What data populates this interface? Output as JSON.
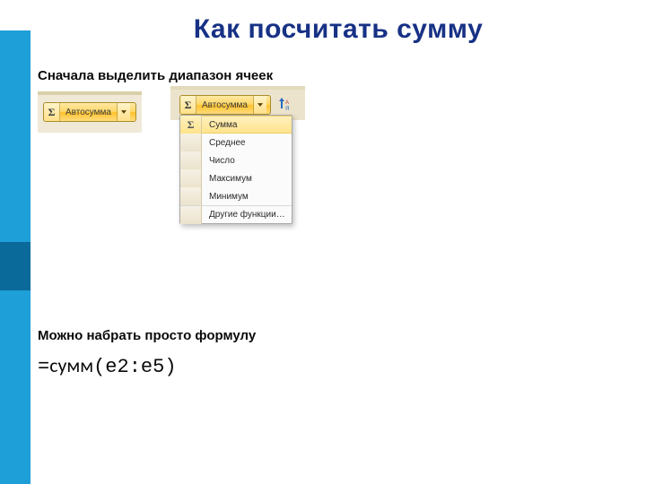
{
  "title": "Как посчитать сумму",
  "step1": "Сначала выделить диапазон ячеек",
  "step2": "Можно набрать просто формулу",
  "formula": {
    "eq": "=",
    "name": "сумм",
    "args": "е2:е5"
  },
  "autosum": {
    "sigma": "Σ",
    "label": "Автосумма",
    "menu": {
      "items": [
        {
          "label": "Сумма",
          "highlight": true
        },
        {
          "label": "Среднее",
          "highlight": false
        },
        {
          "label": "Число",
          "highlight": false
        },
        {
          "label": "Максимум",
          "highlight": false
        },
        {
          "label": "Минимум",
          "highlight": false
        },
        {
          "label": "Другие функции…",
          "highlight": false,
          "separator": true
        }
      ]
    }
  },
  "colors": {
    "sidebar": "#1e9fd8",
    "sidebar_band": "#0a6a9a",
    "title": "#173185",
    "ribbon_bg": "#ece3cd",
    "button_border": "#a88d2a"
  }
}
